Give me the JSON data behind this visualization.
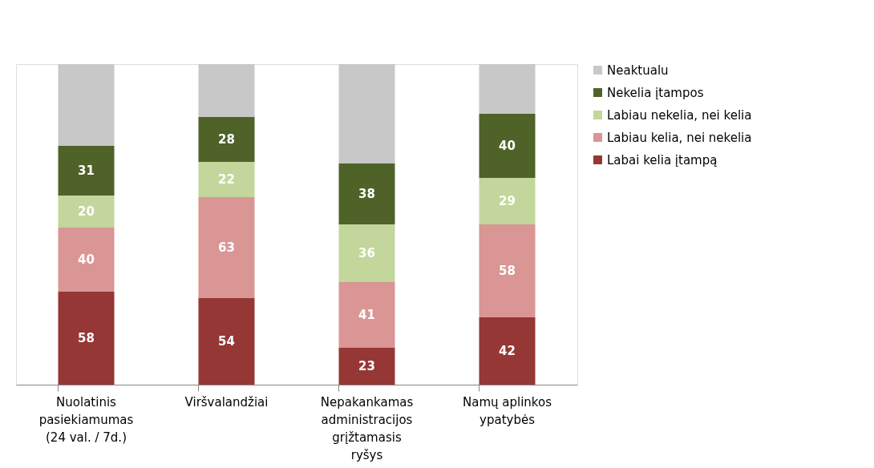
{
  "chart_data": {
    "type": "bar",
    "stacked": true,
    "categories": [
      "Nuolatinis pasiekiamumas (24 val. / 7d.)",
      "Viršvalandžiai",
      "Nepakankamas administracijos grįžtamasis ryšys",
      "Namų aplinkos ypatybės"
    ],
    "series": [
      {
        "name": "Labai kelia įtampą",
        "color": "#953735",
        "values": [
          58,
          54,
          23,
          42
        ],
        "value_labels": [
          "58",
          "54",
          "23",
          "42"
        ]
      },
      {
        "name": "Labiau kelia, nei nekelia",
        "color": "#d99694",
        "values": [
          40,
          63,
          41,
          58
        ],
        "value_labels": [
          "40",
          "63",
          "41",
          "58"
        ]
      },
      {
        "name": "Labiau nekelia, nei kelia",
        "color": "#c3d69b",
        "values": [
          20,
          22,
          36,
          29
        ],
        "value_labels": [
          "20",
          "22",
          "36",
          "29"
        ]
      },
      {
        "name": "Nekelia įtampos",
        "color": "#4f6228",
        "values": [
          31,
          28,
          38,
          40
        ],
        "value_labels": [
          "31",
          "28",
          "38",
          "40"
        ]
      },
      {
        "name": "Neaktualu",
        "color": "#c8c8c8",
        "values": [
          51,
          33,
          62,
          31
        ],
        "value_labels": [
          null,
          null,
          null,
          null
        ]
      }
    ],
    "legend": "right",
    "grid": false
  }
}
